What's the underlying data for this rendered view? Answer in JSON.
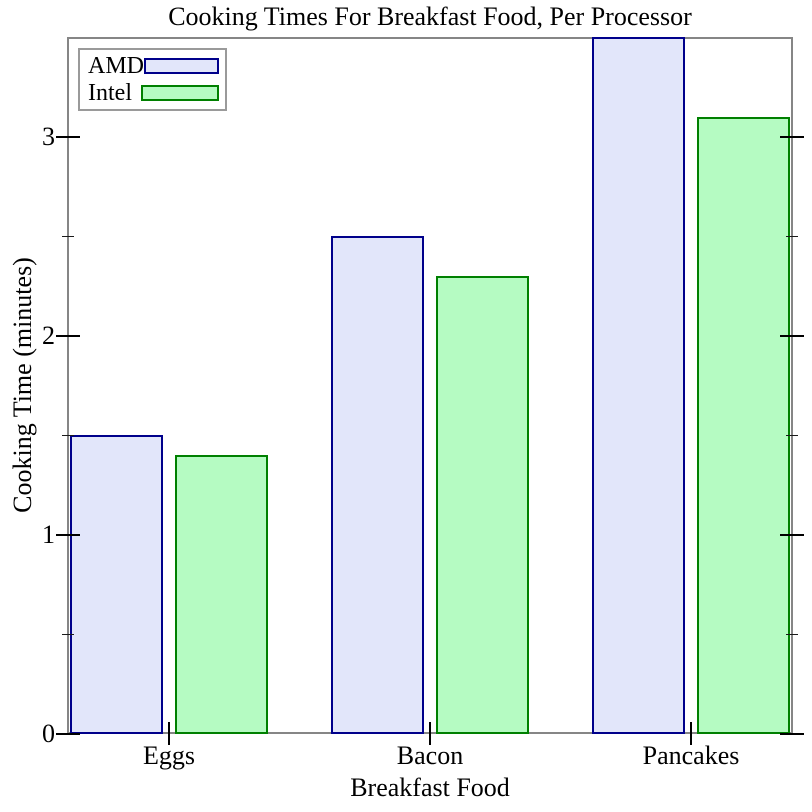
{
  "chart_data": {
    "type": "bar",
    "title": "Cooking Times For Breakfast Food, Per Processor",
    "xlabel": "Breakfast Food",
    "ylabel": "Cooking Time (minutes)",
    "categories": [
      "Eggs",
      "Bacon",
      "Pancakes"
    ],
    "series": [
      {
        "name": "AMD",
        "values": [
          1.5,
          2.5,
          3.5
        ],
        "fill": "#e2e6fa",
        "edge": "#00008b"
      },
      {
        "name": "Intel",
        "values": [
          1.4,
          2.3,
          3.1
        ],
        "fill": "#b5fbc2",
        "edge": "#008000"
      }
    ],
    "ylim": [
      0,
      3.5
    ],
    "yticks_major": [
      {
        "value": 0,
        "label": "0"
      },
      {
        "value": 1,
        "label": "1"
      },
      {
        "value": 2,
        "label": "2"
      },
      {
        "value": 3,
        "label": "3"
      }
    ],
    "yticks_minor": [
      0.5,
      1.5,
      2.5
    ],
    "grid": "off",
    "legend_position": "top-left",
    "colors": {
      "frame": "#868686",
      "tick": "#000000",
      "legend_border": "#9a9a9a",
      "background": "#ffffff"
    }
  }
}
